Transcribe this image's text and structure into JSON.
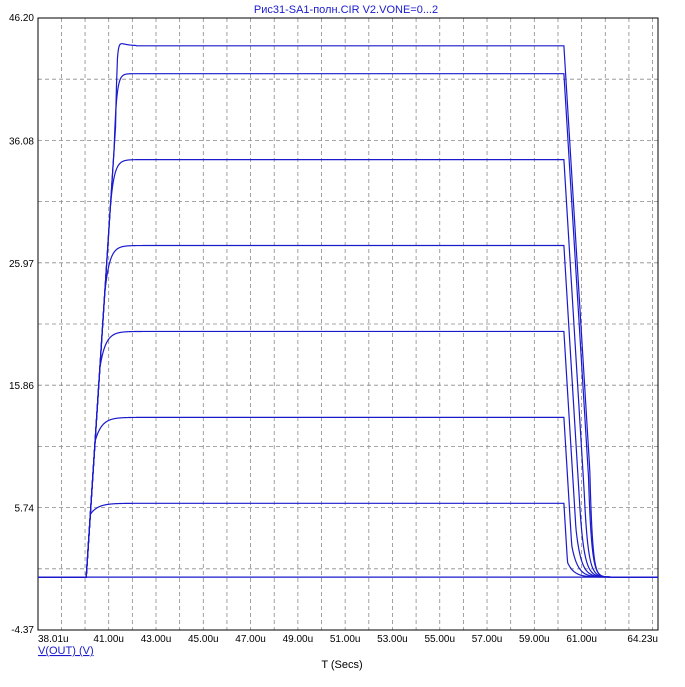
{
  "chart_data": {
    "type": "line",
    "title": "Рис31-SA1-полн.CIR V2.VONE=0...2",
    "xlabel": "T (Secs)",
    "ylabel": "V(OUT) (V)",
    "x_unit": "u",
    "xlim": [
      38.01,
      64.23
    ],
    "ylim": [
      -4.37,
      46.2
    ],
    "x_ticks": [
      "38.01u",
      "41.00u",
      "43.00u",
      "45.00u",
      "47.00u",
      "49.00u",
      "51.00u",
      "53.00u",
      "55.00u",
      "57.00u",
      "59.00u",
      "61.00u",
      "64.23u"
    ],
    "x_tick_values": [
      38.01,
      41.0,
      43.0,
      45.0,
      47.0,
      49.0,
      51.0,
      53.0,
      55.0,
      57.0,
      59.0,
      61.0,
      64.23
    ],
    "y_ticks": [
      "46.20",
      "36.08",
      "25.97",
      "15.86",
      "5.74",
      "-4.37"
    ],
    "y_tick_values": [
      46.2,
      36.08,
      25.97,
      15.86,
      5.74,
      -4.37
    ],
    "grid": true,
    "legend": "none",
    "colors": {
      "trace": "#1a1acc",
      "text_title": "#1a1acc",
      "axis_text": "#000000",
      "grid": "#8a8a8a"
    },
    "series": [
      {
        "plateau": 0.0,
        "rise_tau": 0.35,
        "fall_tau": 0.3
      },
      {
        "plateau": 6.1,
        "rise_tau": 0.32,
        "fall_tau": 0.28
      },
      {
        "plateau": 13.2,
        "rise_tau": 0.28,
        "fall_tau": 0.25
      },
      {
        "plateau": 20.3,
        "rise_tau": 0.24,
        "fall_tau": 0.22
      },
      {
        "plateau": 27.4,
        "rise_tau": 0.2,
        "fall_tau": 0.19
      },
      {
        "plateau": 34.5,
        "rise_tau": 0.16,
        "fall_tau": 0.16
      },
      {
        "plateau": 41.6,
        "rise_tau": 0.1,
        "fall_tau": 0.13
      },
      {
        "plateau": 43.9,
        "rise_tau": 0.05,
        "fall_tau": 0.11,
        "overshoot": 0.4
      }
    ],
    "pulse": {
      "t_rise_start": 40.05,
      "t_fall_start": 60.25
    }
  }
}
